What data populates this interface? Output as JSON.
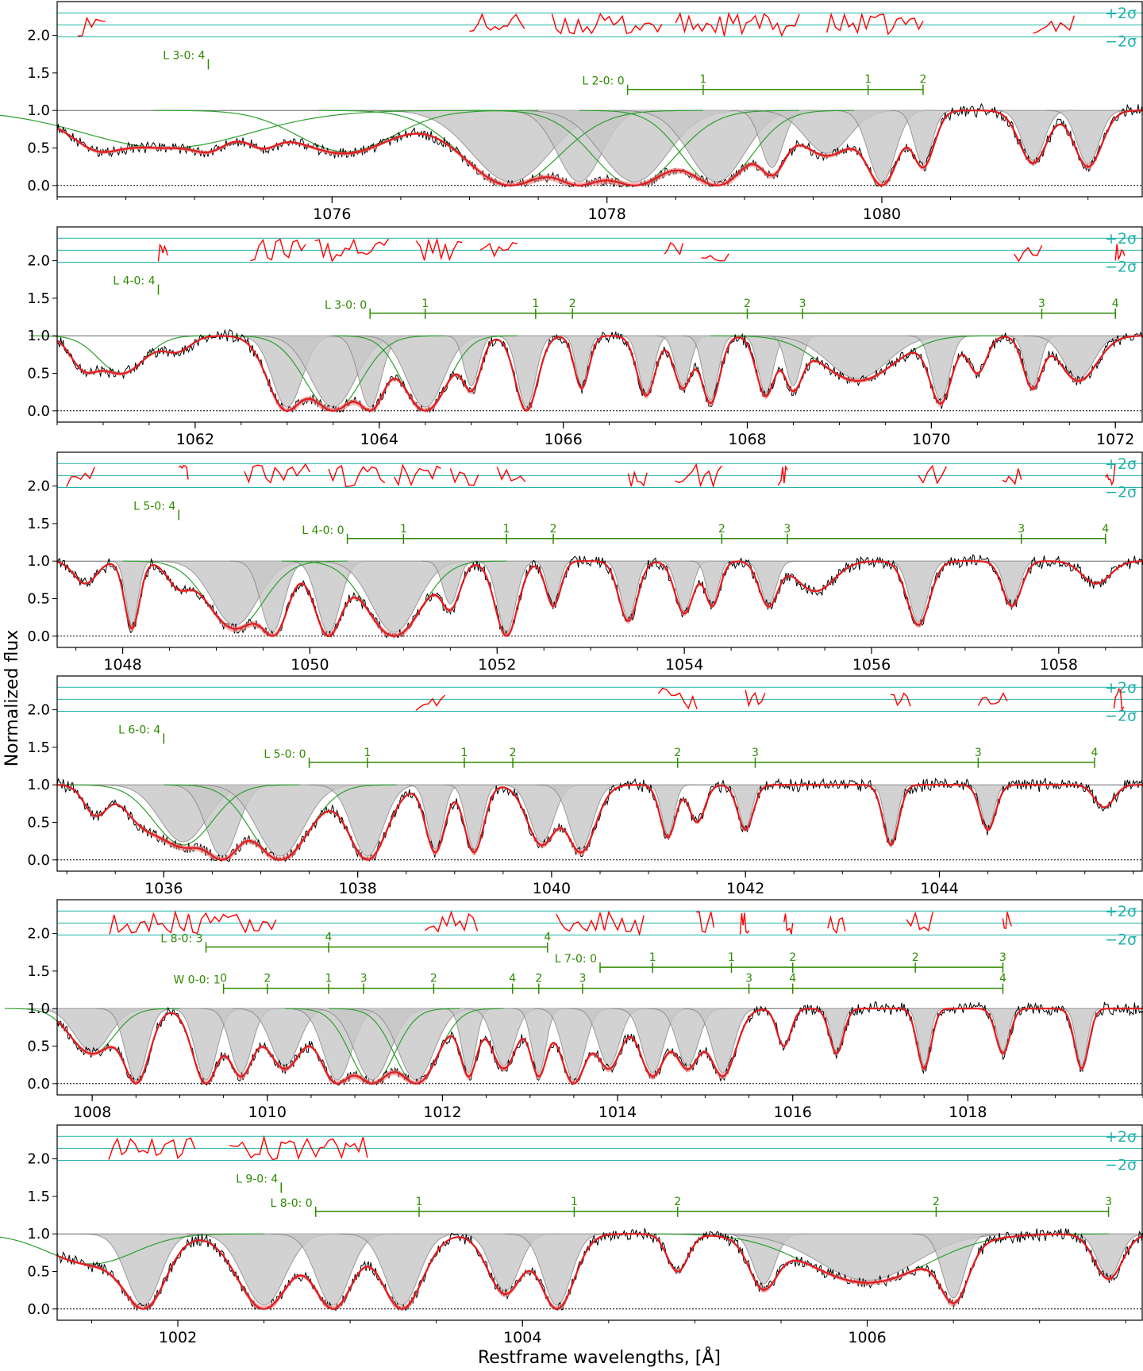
{
  "figure": {
    "ylabel": "Normalized flux",
    "xlabel": "Restframe wavelengths, [Å]"
  },
  "colors": {
    "data": "#000000",
    "model": "#e31a1c",
    "model_band": "#f08080",
    "components": "#808080",
    "fit_component": "#2ca02c",
    "line_marker": "#2e8b00",
    "residual": "#ff0000",
    "sigma_lines": "#20b2aa"
  },
  "sigma_labels": {
    "plus": "+2σ",
    "minus": "−2σ"
  },
  "chart_data": [
    {
      "type": "line",
      "panel": 1,
      "xlim": [
        1074.0,
        1081.9
      ],
      "ylim": [
        -0.15,
        2.45
      ],
      "xticks": [
        1076,
        1078,
        1080
      ],
      "yticks": [
        0.0,
        0.5,
        1.0,
        1.5,
        2.0
      ],
      "dips": [
        [
          1074.3,
          0.3,
          0.15
        ],
        [
          1074.8,
          0.5,
          0.6
        ],
        [
          1075.1,
          0.2,
          0.1
        ],
        [
          1075.5,
          0.25,
          0.1
        ],
        [
          1076.1,
          0.55,
          0.35
        ],
        [
          1077.3,
          1.0,
          0.35
        ],
        [
          1077.8,
          1.0,
          0.2
        ],
        [
          1078.2,
          1.0,
          0.3
        ],
        [
          1078.8,
          1.0,
          0.25
        ],
        [
          1079.2,
          0.8,
          0.1
        ],
        [
          1079.6,
          0.6,
          0.2
        ],
        [
          1080.0,
          1.0,
          0.12
        ],
        [
          1080.3,
          0.75,
          0.08
        ],
        [
          1081.1,
          0.7,
          0.1
        ],
        [
          1081.5,
          0.75,
          0.1
        ]
      ],
      "residual_segments": [
        [
          1074.15,
          1074.35
        ],
        [
          1077.0,
          1077.4
        ],
        [
          1077.6,
          1078.4
        ],
        [
          1078.5,
          1079.4
        ],
        [
          1079.6,
          1080.3
        ],
        [
          1081.1,
          1081.4
        ]
      ],
      "series_groups": [
        {
          "label": "L 3-0: 4",
          "y": 1.62,
          "ticks": [
            {
              "x": 1075.1,
              "label": ""
            }
          ]
        },
        {
          "label": "L 2-0: 0",
          "y": 1.28,
          "ticks": [
            {
              "x": 1078.15,
              "label": ""
            },
            {
              "x": 1078.7,
              "label": "1"
            },
            {
              "x": 1079.9,
              "label": "1"
            },
            {
              "x": 1080.3,
              "label": "2"
            }
          ]
        }
      ]
    },
    {
      "type": "line",
      "panel": 2,
      "xlim": [
        1060.5,
        1072.3
      ],
      "ylim": [
        -0.15,
        2.45
      ],
      "xticks": [
        1062,
        1064,
        1066,
        1068,
        1070,
        1072
      ],
      "yticks": [
        0.0,
        0.5,
        1.0,
        1.5,
        2.0
      ],
      "dips": [
        [
          1060.8,
          0.4,
          0.15
        ],
        [
          1061.2,
          0.5,
          0.25
        ],
        [
          1061.8,
          0.2,
          0.15
        ],
        [
          1063.0,
          1.0,
          0.2
        ],
        [
          1063.5,
          1.0,
          0.3
        ],
        [
          1063.9,
          1.0,
          0.15
        ],
        [
          1064.5,
          1.0,
          0.25
        ],
        [
          1065.0,
          0.7,
          0.1
        ],
        [
          1065.6,
          1.0,
          0.12
        ],
        [
          1066.2,
          0.7,
          0.08
        ],
        [
          1066.9,
          0.8,
          0.1
        ],
        [
          1067.3,
          0.7,
          0.1
        ],
        [
          1067.6,
          0.9,
          0.1
        ],
        [
          1068.2,
          0.8,
          0.1
        ],
        [
          1068.5,
          0.7,
          0.1
        ],
        [
          1069.2,
          0.6,
          0.4
        ],
        [
          1070.1,
          0.9,
          0.12
        ],
        [
          1070.5,
          0.5,
          0.1
        ],
        [
          1071.1,
          0.7,
          0.1
        ],
        [
          1071.6,
          0.6,
          0.2
        ]
      ],
      "residual_segments": [
        [
          1061.6,
          1061.7
        ],
        [
          1062.6,
          1063.2
        ],
        [
          1063.3,
          1064.1
        ],
        [
          1064.4,
          1064.9
        ],
        [
          1065.1,
          1065.5
        ],
        [
          1067.1,
          1067.3
        ],
        [
          1067.5,
          1067.8
        ],
        [
          1070.9,
          1071.2
        ],
        [
          1072.0,
          1072.1
        ]
      ],
      "series_groups": [
        {
          "label": "L 4-0: 4",
          "y": 1.62,
          "ticks": [
            {
              "x": 1061.6,
              "label": ""
            }
          ]
        },
        {
          "label": "L 3-0: 0",
          "y": 1.3,
          "ticks": [
            {
              "x": 1063.9,
              "label": ""
            },
            {
              "x": 1064.5,
              "label": "1"
            },
            {
              "x": 1065.7,
              "label": "1"
            },
            {
              "x": 1066.1,
              "label": "2"
            },
            {
              "x": 1068.0,
              "label": "2"
            },
            {
              "x": 1068.6,
              "label": "3"
            },
            {
              "x": 1071.2,
              "label": "3"
            },
            {
              "x": 1072.0,
              "label": "4"
            }
          ]
        }
      ]
    },
    {
      "type": "line",
      "panel": 3,
      "xlim": [
        1047.3,
        1058.9
      ],
      "ylim": [
        -0.15,
        2.45
      ],
      "xticks": [
        1048,
        1050,
        1052,
        1054,
        1056,
        1058
      ],
      "yticks": [
        0.0,
        0.5,
        1.0,
        1.5,
        2.0
      ],
      "dips": [
        [
          1047.6,
          0.3,
          0.12
        ],
        [
          1048.1,
          0.9,
          0.08
        ],
        [
          1048.6,
          0.3,
          0.12
        ],
        [
          1049.2,
          0.9,
          0.3
        ],
        [
          1049.6,
          1.0,
          0.15
        ],
        [
          1050.2,
          1.0,
          0.15
        ],
        [
          1050.9,
          1.0,
          0.3
        ],
        [
          1051.5,
          0.6,
          0.1
        ],
        [
          1052.1,
          1.0,
          0.12
        ],
        [
          1052.6,
          0.6,
          0.08
        ],
        [
          1053.4,
          0.8,
          0.1
        ],
        [
          1054.0,
          0.7,
          0.1
        ],
        [
          1054.3,
          0.6,
          0.08
        ],
        [
          1054.9,
          0.6,
          0.1
        ],
        [
          1055.4,
          0.4,
          0.2
        ],
        [
          1056.5,
          0.85,
          0.12
        ],
        [
          1057.5,
          0.6,
          0.1
        ],
        [
          1058.4,
          0.3,
          0.15
        ]
      ],
      "residual_segments": [
        [
          1047.4,
          1047.7
        ],
        [
          1048.6,
          1048.7
        ],
        [
          1049.3,
          1050.0
        ],
        [
          1050.2,
          1050.8
        ],
        [
          1050.9,
          1051.4
        ],
        [
          1051.5,
          1051.8
        ],
        [
          1052.0,
          1052.3
        ],
        [
          1053.4,
          1053.6
        ],
        [
          1053.9,
          1054.4
        ],
        [
          1055.0,
          1055.1
        ],
        [
          1056.5,
          1056.8
        ],
        [
          1057.4,
          1057.6
        ],
        [
          1058.5,
          1058.6
        ]
      ],
      "series_groups": [
        {
          "label": "L 5-0: 4",
          "y": 1.62,
          "ticks": [
            {
              "x": 1048.6,
              "label": ""
            }
          ]
        },
        {
          "label": "L 4-0: 0",
          "y": 1.3,
          "ticks": [
            {
              "x": 1050.4,
              "label": ""
            },
            {
              "x": 1051.0,
              "label": "1"
            },
            {
              "x": 1052.1,
              "label": "1"
            },
            {
              "x": 1052.6,
              "label": "2"
            },
            {
              "x": 1054.4,
              "label": "2"
            },
            {
              "x": 1055.1,
              "label": "3"
            },
            {
              "x": 1057.6,
              "label": "3"
            },
            {
              "x": 1058.5,
              "label": "4"
            }
          ]
        }
      ]
    },
    {
      "type": "line",
      "panel": 4,
      "xlim": [
        1034.9,
        1046.1
      ],
      "ylim": [
        -0.15,
        2.45
      ],
      "xticks": [
        1036,
        1038,
        1040,
        1042,
        1044
      ],
      "yticks": [
        0.0,
        0.5,
        1.0,
        1.5,
        2.0
      ],
      "dips": [
        [
          1035.3,
          0.4,
          0.12
        ],
        [
          1035.8,
          0.4,
          0.2
        ],
        [
          1036.2,
          0.8,
          0.3
        ],
        [
          1036.6,
          1.0,
          0.2
        ],
        [
          1037.2,
          1.0,
          0.3
        ],
        [
          1038.1,
          1.0,
          0.2
        ],
        [
          1038.8,
          0.9,
          0.1
        ],
        [
          1039.2,
          0.9,
          0.1
        ],
        [
          1039.9,
          0.8,
          0.15
        ],
        [
          1040.3,
          0.9,
          0.15
        ],
        [
          1041.2,
          0.7,
          0.08
        ],
        [
          1041.5,
          0.5,
          0.08
        ],
        [
          1042.0,
          0.6,
          0.08
        ],
        [
          1043.5,
          0.8,
          0.08
        ],
        [
          1044.5,
          0.6,
          0.08
        ],
        [
          1045.7,
          0.3,
          0.1
        ]
      ],
      "residual_segments": [
        [
          1038.6,
          1038.9
        ],
        [
          1041.1,
          1041.5
        ],
        [
          1042.0,
          1042.2
        ],
        [
          1043.5,
          1043.7
        ],
        [
          1044.4,
          1044.7
        ],
        [
          1045.8,
          1045.9
        ]
      ],
      "series_groups": [
        {
          "label": "L 6-0: 4",
          "y": 1.62,
          "ticks": [
            {
              "x": 1036.0,
              "label": ""
            }
          ]
        },
        {
          "label": "L 5-0: 0",
          "y": 1.3,
          "ticks": [
            {
              "x": 1037.5,
              "label": ""
            },
            {
              "x": 1038.1,
              "label": "1"
            },
            {
              "x": 1039.1,
              "label": "1"
            },
            {
              "x": 1039.6,
              "label": "2"
            },
            {
              "x": 1041.3,
              "label": "2"
            },
            {
              "x": 1042.1,
              "label": "3"
            },
            {
              "x": 1044.4,
              "label": "3"
            },
            {
              "x": 1045.6,
              "label": "4"
            }
          ]
        }
      ]
    },
    {
      "type": "line",
      "panel": 5,
      "xlim": [
        1007.6,
        1020.0
      ],
      "ylim": [
        -0.15,
        2.45
      ],
      "xticks": [
        1008,
        1010,
        1012,
        1014,
        1016,
        1018
      ],
      "yticks": [
        0.0,
        0.5,
        1.0,
        1.5,
        2.0
      ],
      "dips": [
        [
          1008.0,
          0.6,
          0.25
        ],
        [
          1008.5,
          1.0,
          0.15
        ],
        [
          1009.3,
          1.0,
          0.15
        ],
        [
          1009.7,
          0.9,
          0.15
        ],
        [
          1010.2,
          0.8,
          0.2
        ],
        [
          1010.8,
          1.0,
          0.2
        ],
        [
          1011.2,
          1.0,
          0.25
        ],
        [
          1011.7,
          1.0,
          0.25
        ],
        [
          1012.3,
          0.9,
          0.1
        ],
        [
          1012.7,
          0.8,
          0.15
        ],
        [
          1013.1,
          0.9,
          0.1
        ],
        [
          1013.5,
          1.0,
          0.15
        ],
        [
          1013.9,
          0.8,
          0.15
        ],
        [
          1014.4,
          0.9,
          0.15
        ],
        [
          1014.8,
          0.8,
          0.15
        ],
        [
          1015.2,
          0.9,
          0.15
        ],
        [
          1015.9,
          0.5,
          0.08
        ],
        [
          1016.5,
          0.6,
          0.08
        ],
        [
          1017.5,
          0.8,
          0.08
        ],
        [
          1018.4,
          0.6,
          0.08
        ],
        [
          1019.3,
          0.8,
          0.08
        ]
      ],
      "residual_segments": [
        [
          1008.2,
          1010.1
        ],
        [
          1011.8,
          1012.4
        ],
        [
          1013.3,
          1014.3
        ],
        [
          1014.9,
          1015.1
        ],
        [
          1015.4,
          1015.5
        ],
        [
          1015.9,
          1016.0
        ],
        [
          1016.4,
          1016.6
        ],
        [
          1017.3,
          1017.6
        ],
        [
          1018.4,
          1018.5
        ]
      ],
      "series_groups": [
        {
          "label": "L 8-0: 3",
          "y": 1.82,
          "ticks": [
            {
              "x": 1009.3,
              "label": ""
            },
            {
              "x": 1010.7,
              "label": "4"
            },
            {
              "x": 1013.2,
              "label": "4"
            }
          ]
        },
        {
          "label": "L 7-0: 0",
          "y": 1.55,
          "ticks": [
            {
              "x": 1013.8,
              "label": ""
            },
            {
              "x": 1014.4,
              "label": "1"
            },
            {
              "x": 1015.3,
              "label": "1"
            },
            {
              "x": 1016.0,
              "label": "2"
            },
            {
              "x": 1017.4,
              "label": "2"
            },
            {
              "x": 1018.4,
              "label": "3"
            }
          ]
        },
        {
          "label": "W 0-0: 1",
          "y": 1.27,
          "ticks": [
            {
              "x": 1009.5,
              "label": "0"
            },
            {
              "x": 1010.0,
              "label": "2"
            },
            {
              "x": 1010.7,
              "label": "1"
            },
            {
              "x": 1011.1,
              "label": "3"
            },
            {
              "x": 1011.9,
              "label": "2"
            },
            {
              "x": 1012.8,
              "label": "4"
            },
            {
              "x": 1013.1,
              "label": "2"
            },
            {
              "x": 1013.6,
              "label": "3"
            },
            {
              "x": 1015.5,
              "label": "3"
            },
            {
              "x": 1016.0,
              "label": "4"
            },
            {
              "x": 1018.4,
              "label": "4"
            }
          ]
        }
      ]
    },
    {
      "type": "line",
      "panel": 6,
      "xlim": [
        1001.3,
        1007.6
      ],
      "ylim": [
        -0.15,
        2.45
      ],
      "xticks": [
        1002,
        1004,
        1006
      ],
      "yticks": [
        0.0,
        0.5,
        1.0,
        1.5,
        2.0
      ],
      "dips": [
        [
          1001.5,
          0.4,
          0.25
        ],
        [
          1001.8,
          1.0,
          0.12
        ],
        [
          1002.5,
          1.0,
          0.15
        ],
        [
          1002.9,
          1.0,
          0.12
        ],
        [
          1003.3,
          1.0,
          0.12
        ],
        [
          1003.9,
          0.8,
          0.1
        ],
        [
          1004.2,
          1.0,
          0.1
        ],
        [
          1004.9,
          0.5,
          0.06
        ],
        [
          1005.4,
          0.7,
          0.08
        ],
        [
          1006.0,
          0.65,
          0.35
        ],
        [
          1006.5,
          0.9,
          0.08
        ],
        [
          1007.4,
          0.6,
          0.08
        ]
      ],
      "residual_segments": [
        [
          1001.6,
          1002.1
        ],
        [
          1002.3,
          1003.1
        ]
      ],
      "series_groups": [
        {
          "label": "L 9-0: 4",
          "y": 1.62,
          "ticks": [
            {
              "x": 1002.6,
              "label": ""
            }
          ]
        },
        {
          "label": "L 8-0: 0",
          "y": 1.3,
          "ticks": [
            {
              "x": 1002.8,
              "label": ""
            },
            {
              "x": 1003.4,
              "label": "1"
            },
            {
              "x": 1004.3,
              "label": "1"
            },
            {
              "x": 1004.9,
              "label": "2"
            },
            {
              "x": 1006.4,
              "label": "2"
            },
            {
              "x": 1007.4,
              "label": "3"
            }
          ]
        }
      ]
    }
  ]
}
